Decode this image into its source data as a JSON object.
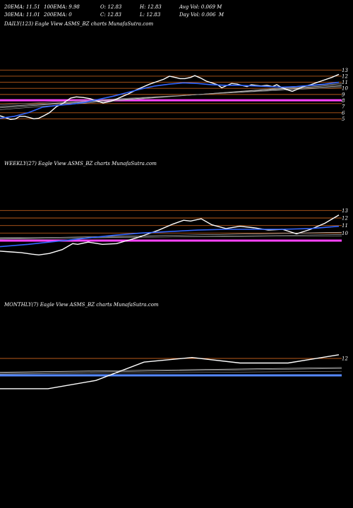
{
  "header": {
    "row1": [
      "20EMA: 11.51",
      "100EMA: 9.98",
      "O: 12.83",
      "H: 12.83",
      "Avg Vol: 0.069 M"
    ],
    "row2": [
      "30EMA: 11.01",
      "200EMA: 0",
      "C: 12.83",
      "L: 12.83",
      "Day Vol: 0.006  M"
    ]
  },
  "chart_data": [
    {
      "type": "line",
      "label": "DAILY(123) Eagle   View  ASMS_BZ charts MunafaSutra.com",
      "ylim": [
        2.5,
        13.5
      ],
      "y_ticks": [
        13,
        12,
        11,
        10,
        9,
        8,
        7,
        6,
        5
      ],
      "h_lines": [
        13,
        12,
        11,
        10,
        9,
        7.5,
        6,
        5
      ],
      "h_lines_highlight": [
        {
          "y": 8.05,
          "color": "#ff44ff"
        }
      ],
      "series": [
        {
          "role": "price",
          "color": "#ffffff",
          "x": [
            0,
            15,
            22,
            28,
            35,
            42,
            48,
            55,
            62,
            70,
            80,
            90,
            100,
            108,
            118,
            128,
            138,
            146,
            158,
            170,
            182,
            192,
            202,
            212,
            222,
            232,
            240,
            248,
            255,
            262,
            270,
            276,
            284,
            292,
            300,
            308,
            314,
            320,
            328,
            336,
            342,
            350,
            356,
            362,
            370,
            378,
            386,
            392,
            398,
            406,
            414,
            422,
            430,
            440,
            450,
            460,
            470,
            480
          ],
          "y": [
            5.5,
            4.9,
            5.0,
            5.4,
            5.4,
            5.2,
            5.0,
            5.1,
            5.5,
            6.0,
            7.0,
            7.6,
            8.4,
            8.6,
            8.5,
            8.3,
            7.9,
            7.6,
            7.9,
            8.5,
            9.1,
            9.7,
            10.2,
            10.7,
            11.1,
            11.5,
            12.0,
            11.8,
            11.6,
            11.6,
            11.8,
            12.1,
            11.7,
            11.2,
            10.9,
            10.6,
            10.1,
            10.4,
            10.8,
            10.7,
            10.5,
            10.3,
            10.6,
            10.5,
            10.4,
            10.5,
            10.3,
            10.6,
            10.2,
            9.8,
            9.5,
            9.9,
            10.3,
            10.6,
            11.0,
            11.4,
            11.8,
            12.3
          ]
        },
        {
          "role": "ema",
          "color": "#3366ff",
          "x": [
            0,
            20,
            40,
            60,
            80,
            100,
            120,
            140,
            160,
            180,
            200,
            220,
            240,
            260,
            280,
            300,
            320,
            340,
            360,
            380,
            400,
            420,
            440,
            460,
            480
          ],
          "y": [
            5.1,
            5.4,
            6.0,
            6.9,
            7.2,
            7.4,
            7.7,
            8.2,
            8.7,
            9.3,
            9.9,
            10.4,
            10.7,
            10.9,
            10.8,
            10.6,
            10.5,
            10.5,
            10.4,
            10.3,
            10.2,
            10.3,
            10.5,
            10.7,
            11.0
          ]
        }
      ],
      "ref_lines": [
        {
          "color": "#aaaaaa",
          "y_start": 6.5,
          "y_end": 10.8
        },
        {
          "color": "#bbbbbb",
          "y_start": 6.8,
          "y_end": 10.6
        },
        {
          "color": "#cccccc",
          "y_start": 7.0,
          "y_end": 10.4
        },
        {
          "color": "#888888",
          "y_start": 7.3,
          "y_end": 10.2
        }
      ]
    },
    {
      "type": "line",
      "label": "WEEKLY(27) Eagle   View  ASMS_BZ charts MunafaSutra.com",
      "ylim": [
        7.5,
        13.5
      ],
      "y_ticks": [
        13,
        12,
        11,
        10
      ],
      "h_lines": [
        13,
        12,
        11,
        10
      ],
      "h_lines_highlight": [
        {
          "y": 9.0,
          "color": "#ff44ff"
        }
      ],
      "series": [
        {
          "role": "price",
          "color": "#ffffff",
          "x": [
            0,
            15,
            30,
            45,
            55,
            70,
            88,
            103,
            110,
            125,
            145,
            165,
            180,
            195,
            210,
            225,
            245,
            260,
            270,
            285,
            300,
            320,
            340,
            360,
            380,
            400,
            420,
            440,
            460,
            480
          ],
          "y": [
            7.6,
            7.5,
            7.4,
            7.2,
            7.1,
            7.3,
            7.8,
            8.6,
            8.5,
            8.8,
            8.5,
            8.6,
            9.0,
            9.4,
            9.9,
            10.4,
            11.2,
            11.7,
            11.6,
            11.9,
            11.1,
            10.6,
            10.9,
            10.7,
            10.4,
            10.5,
            9.9,
            10.5,
            11.3,
            12.4
          ]
        },
        {
          "role": "ema",
          "color": "#3366ff",
          "x": [
            0,
            40,
            80,
            120,
            160,
            200,
            240,
            280,
            320,
            360,
            400,
            440,
            480
          ],
          "y": [
            8.2,
            8.5,
            8.9,
            9.3,
            9.7,
            10.0,
            10.2,
            10.4,
            10.5,
            10.5,
            10.5,
            10.6,
            10.9
          ]
        }
      ],
      "ref_lines": [
        {
          "color": "#aaaaaa",
          "y_start": 9.2,
          "y_end": 9.8
        },
        {
          "color": "#cccccc",
          "y_start": 9.3,
          "y_end": 10.1
        },
        {
          "color": "#888888",
          "y_start": 9.4,
          "y_end": 9.6
        }
      ]
    },
    {
      "type": "line",
      "label": "MONTHLY(7) Eagle   View  ASMS_BZ charts MunafaSutra.com",
      "ylim": [
        8.0,
        13.0
      ],
      "y_ticks": [
        12
      ],
      "h_lines": [
        12
      ],
      "h_lines_highlight": [
        {
          "y": 10.15,
          "color": "#5588ff"
        }
      ],
      "series": [
        {
          "role": "price",
          "color": "#ffffff",
          "x": [
            0,
            68,
            136,
            204,
            272,
            340,
            408,
            480
          ],
          "y": [
            8.7,
            8.7,
            9.6,
            11.6,
            12.1,
            11.5,
            11.5,
            12.4
          ]
        }
      ],
      "ref_lines": [
        {
          "color": "#aaaaaa",
          "y_start": 10.4,
          "y_end": 10.9
        },
        {
          "color": "#cccccc",
          "y_start": 10.5,
          "y_end": 11.0
        },
        {
          "color": "#888888",
          "y_start": 10.3,
          "y_end": 10.6
        }
      ]
    }
  ]
}
